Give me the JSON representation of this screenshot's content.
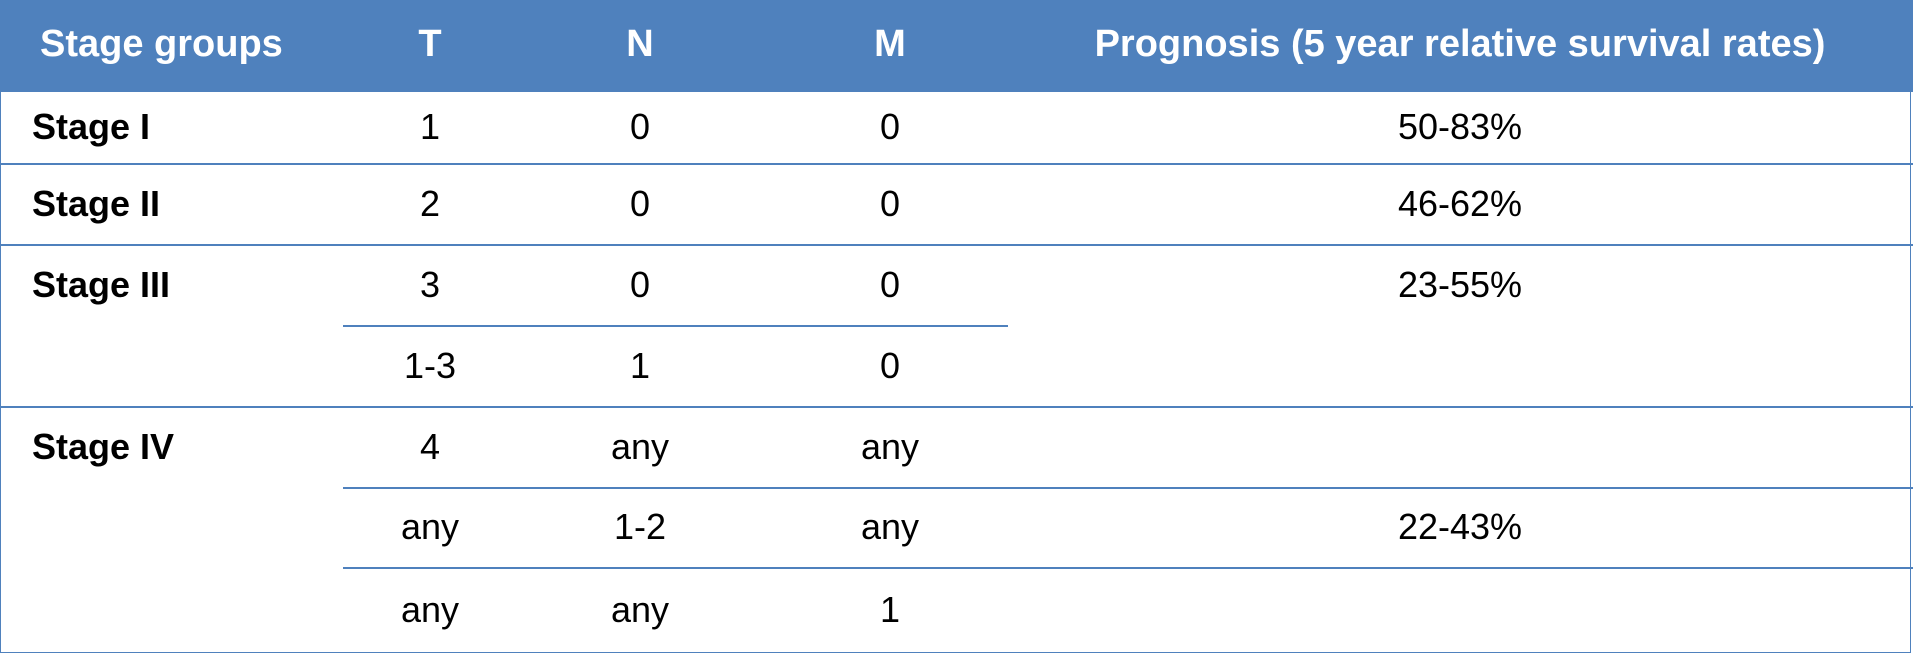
{
  "headers": [
    "Stage groups",
    "T",
    "N",
    "M",
    "Prognosis (5 year relative survival rates)"
  ],
  "stages": [
    {
      "name": "Stage I",
      "prognosis": "50-83%",
      "rows": [
        {
          "T": "1",
          "N": "0",
          "M": "0"
        }
      ]
    },
    {
      "name": "Stage II",
      "prognosis": "46-62%",
      "rows": [
        {
          "T": "2",
          "N": "0",
          "M": "0"
        }
      ]
    },
    {
      "name": "Stage III",
      "prognosis": "23-55%",
      "rows": [
        {
          "T": "3",
          "N": "0",
          "M": "0"
        },
        {
          "T": "1-3",
          "N": "1",
          "M": "0"
        }
      ]
    },
    {
      "name": "Stage IV",
      "prognosis": "22-43%",
      "rows": [
        {
          "T": "4",
          "N": "any",
          "M": "any"
        },
        {
          "T": "any",
          "N": "1-2",
          "M": "any"
        },
        {
          "T": "any",
          "N": "any",
          "M": "1"
        }
      ]
    }
  ],
  "colors": {
    "header_bg": "#4f81bd",
    "header_text": "#ffffff",
    "rule": "#4f81bd"
  }
}
